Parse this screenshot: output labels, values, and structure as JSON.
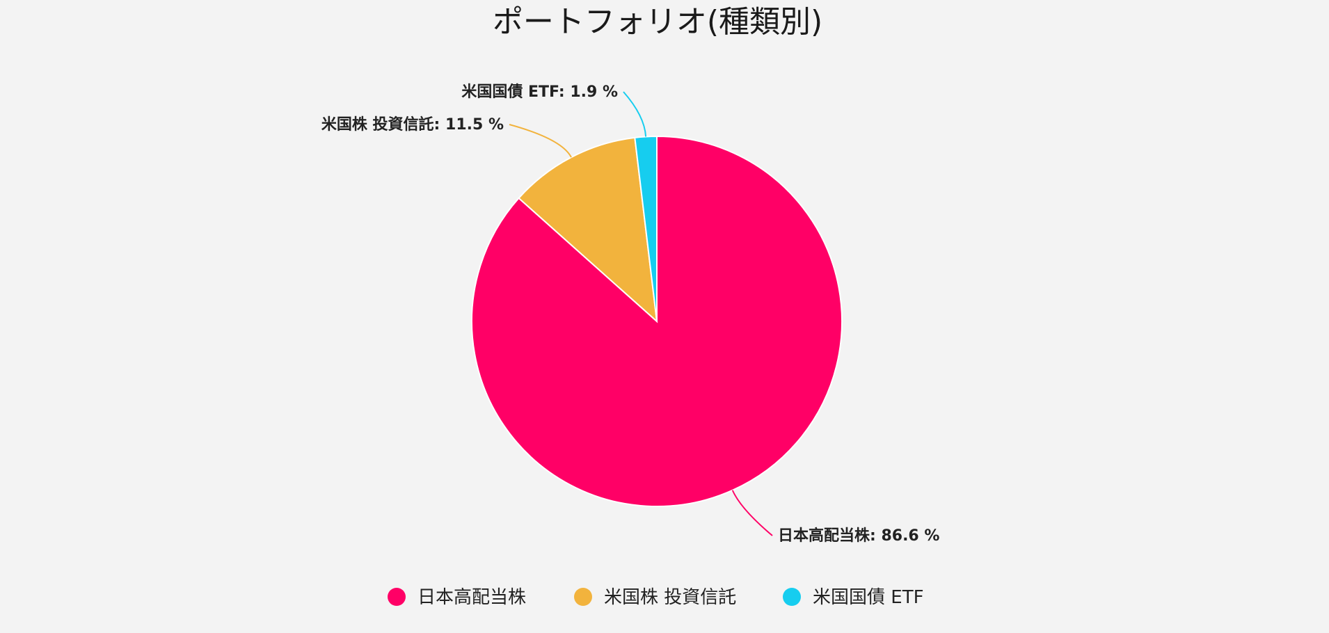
{
  "chart_data": {
    "type": "pie",
    "title": "ポートフォリオ(種類別)",
    "categories": [
      "日本高配当株",
      "米国株 投資信託",
      "米国国債 ETF"
    ],
    "values": [
      86.6,
      11.5,
      1.9
    ],
    "unit": "%",
    "slice_labels": [
      "日本高配当株: 86.6 %",
      "米国株 投資信託: 11.5 %",
      "米国国債 ETF: 1.9 %"
    ],
    "colors": [
      "#ff0066",
      "#f2b33d",
      "#16cdef"
    ],
    "legend": {
      "position": "bottom",
      "entries": [
        "日本高配当株",
        "米国株 投資信託",
        "米国国債 ETF"
      ]
    }
  }
}
